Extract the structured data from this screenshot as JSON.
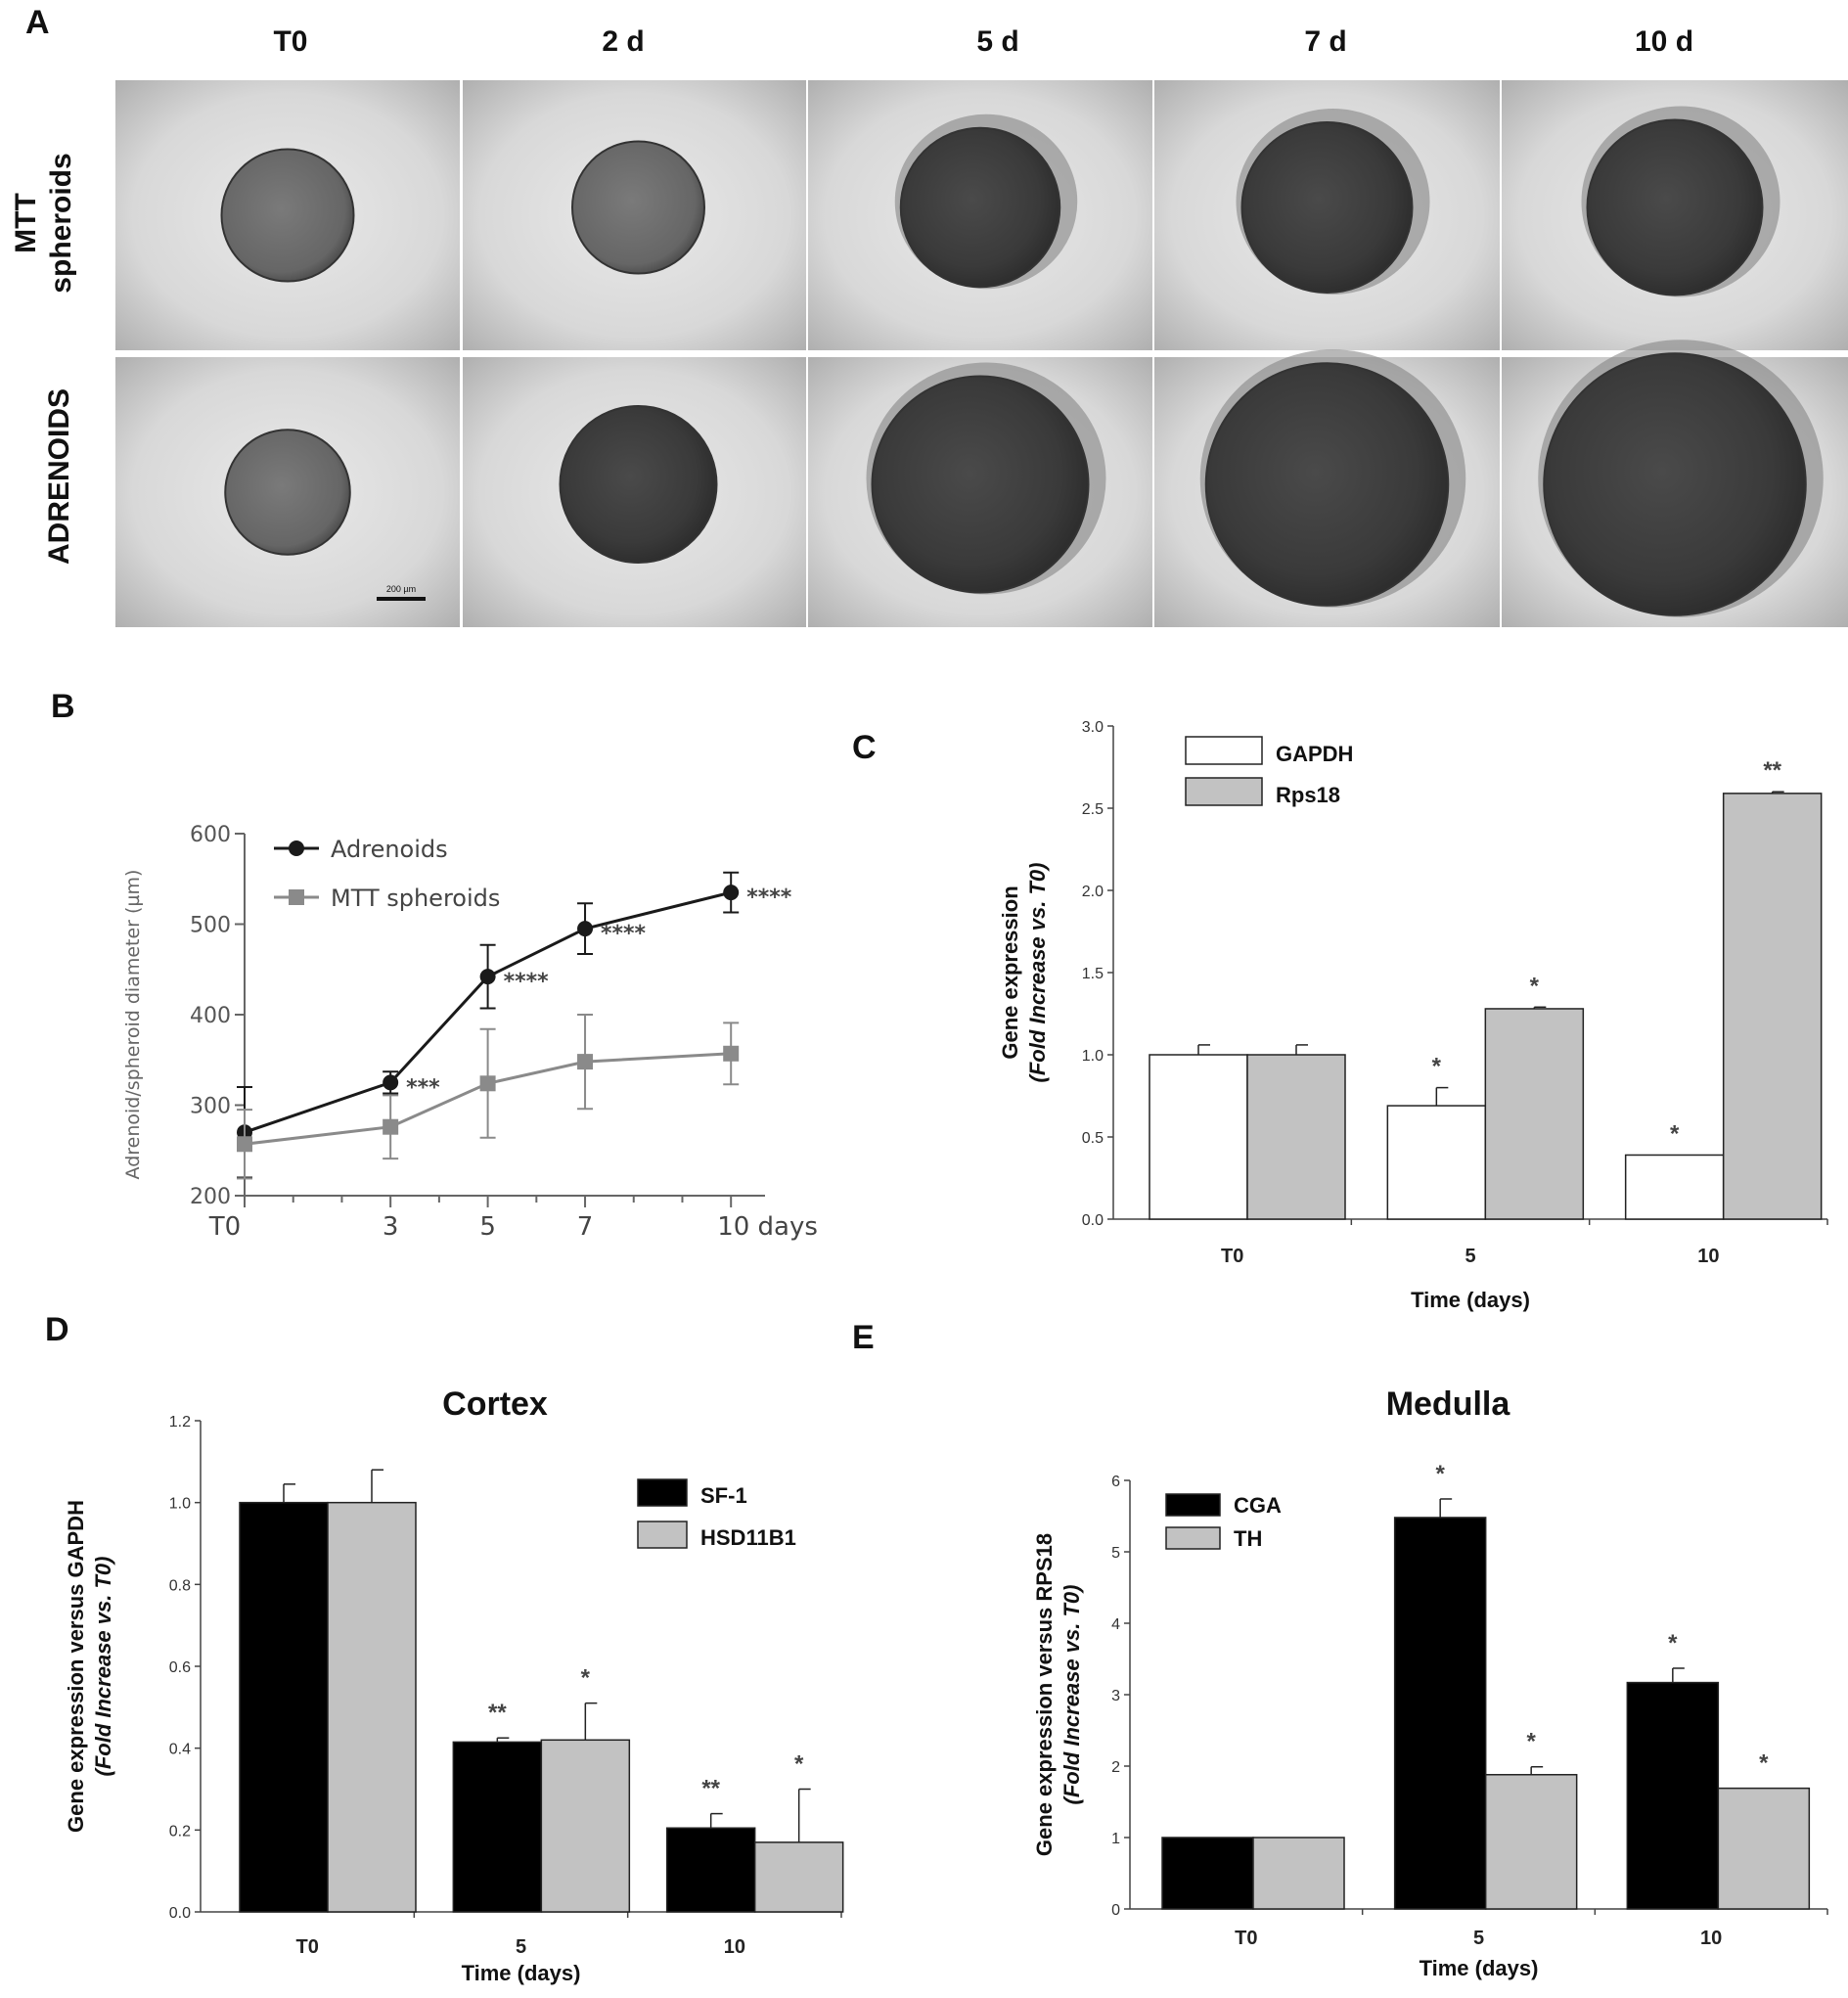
{
  "panel_labels": {
    "A": "A",
    "B": "B",
    "C": "C",
    "D": "D",
    "E": "E"
  },
  "panel_a": {
    "columns": [
      "T0",
      "2 d",
      "5 d",
      "7 d",
      "10 d"
    ],
    "rows": [
      {
        "label_lines": [
          "MTT",
          "spheroids"
        ],
        "spheroid_diameter_um": [
          270,
          270,
          325,
          348,
          358
        ]
      },
      {
        "label_lines": [
          "ADRENOIDS"
        ],
        "spheroid_diameter_um": [
          255,
          320,
          442,
          495,
          535
        ]
      }
    ],
    "scale_bar_label": "200 µm",
    "scale_bar_um": 200
  },
  "chart_data": [
    {
      "panel": "B",
      "type": "line",
      "x": [
        0,
        3,
        5,
        7,
        10
      ],
      "x_tick_labels": [
        "T0",
        "3",
        "5",
        "7",
        "10 days"
      ],
      "xlim": [
        0,
        10.7
      ],
      "ylim": [
        200,
        600
      ],
      "y_ticks": [
        200,
        300,
        400,
        500,
        600
      ],
      "ylabel": "Adrenoid/spheroid diameter (µm)",
      "legend_position": "top-left",
      "series": [
        {
          "name": "Adrenoids",
          "marker": "circle",
          "color": "#1a1a1a",
          "values": [
            270,
            325,
            442,
            495,
            535
          ],
          "errors": [
            50,
            12,
            35,
            28,
            22
          ]
        },
        {
          "name": "MTT spheroids",
          "marker": "square",
          "color": "#8a8a8a",
          "values": [
            257,
            276,
            324,
            348,
            357
          ],
          "errors": [
            38,
            35,
            60,
            52,
            34
          ]
        }
      ],
      "annotations": [
        {
          "x": 3,
          "y": 325,
          "text": "***"
        },
        {
          "x": 5,
          "y": 442,
          "text": "****"
        },
        {
          "x": 7,
          "y": 495,
          "text": "****"
        },
        {
          "x": 10,
          "y": 535,
          "text": "****"
        }
      ]
    },
    {
      "panel": "C",
      "type": "bar",
      "categories": [
        "T0",
        "5",
        "10"
      ],
      "xlabel": "Time (days)",
      "ylabel_lines": [
        "Gene expression",
        "(Fold Increase vs. T0)"
      ],
      "ylim": [
        0,
        3.0
      ],
      "y_ticks": [
        0.0,
        0.5,
        1.0,
        1.5,
        2.0,
        2.5,
        3.0
      ],
      "legend_position": "top-left",
      "series": [
        {
          "name": "GAPDH",
          "color": "#ffffff",
          "values": [
            1.0,
            0.69,
            0.39
          ],
          "errors": [
            0.06,
            0.11,
            0.0
          ],
          "annotations": [
            "",
            "*",
            "*"
          ]
        },
        {
          "name": "Rps18",
          "color": "#c2c2c2",
          "values": [
            1.0,
            1.28,
            2.59
          ],
          "errors": [
            0.06,
            0.01,
            0.01
          ],
          "annotations": [
            "",
            "*",
            "**"
          ]
        }
      ]
    },
    {
      "panel": "D",
      "type": "bar",
      "title": "Cortex",
      "categories": [
        "T0",
        "5",
        "10"
      ],
      "xlabel": "Time (days)",
      "ylabel_lines": [
        "Gene expression versus  GAPDH",
        "(Fold Increase vs. T0)"
      ],
      "ylim": [
        0,
        1.2
      ],
      "y_ticks": [
        0.0,
        0.2,
        0.4,
        0.6,
        0.8,
        1.0,
        1.2
      ],
      "legend_position": "top-right",
      "series": [
        {
          "name": "SF-1",
          "color": "#000000",
          "values": [
            1.0,
            0.415,
            0.205
          ],
          "errors": [
            0.045,
            0.01,
            0.035
          ],
          "annotations": [
            "",
            "**",
            "**"
          ]
        },
        {
          "name": "HSD11B1",
          "color": "#c2c2c2",
          "values": [
            1.0,
            0.42,
            0.17
          ],
          "errors": [
            0.08,
            0.09,
            0.13
          ],
          "annotations": [
            "",
            "*",
            "*"
          ]
        }
      ]
    },
    {
      "panel": "E",
      "type": "bar",
      "title": "Medulla",
      "categories": [
        "T0",
        "5",
        "10"
      ],
      "xlabel": "Time (days)",
      "ylabel_lines": [
        "Gene expression versus RPS18",
        "(Fold Increase vs. T0)"
      ],
      "ylim": [
        0,
        6
      ],
      "y_ticks": [
        0,
        1,
        2,
        3,
        4,
        5,
        6
      ],
      "legend_position": "top-left",
      "series": [
        {
          "name": "CGA",
          "color": "#000000",
          "values": [
            1.0,
            5.48,
            3.17
          ],
          "errors": [
            0.0,
            0.26,
            0.2
          ],
          "annotations": [
            "",
            "*",
            "*"
          ]
        },
        {
          "name": "TH",
          "color": "#c2c2c2",
          "values": [
            1.0,
            1.88,
            1.69
          ],
          "errors": [
            0.0,
            0.11,
            0.0
          ],
          "annotations": [
            "",
            "*",
            "*"
          ]
        }
      ]
    }
  ]
}
